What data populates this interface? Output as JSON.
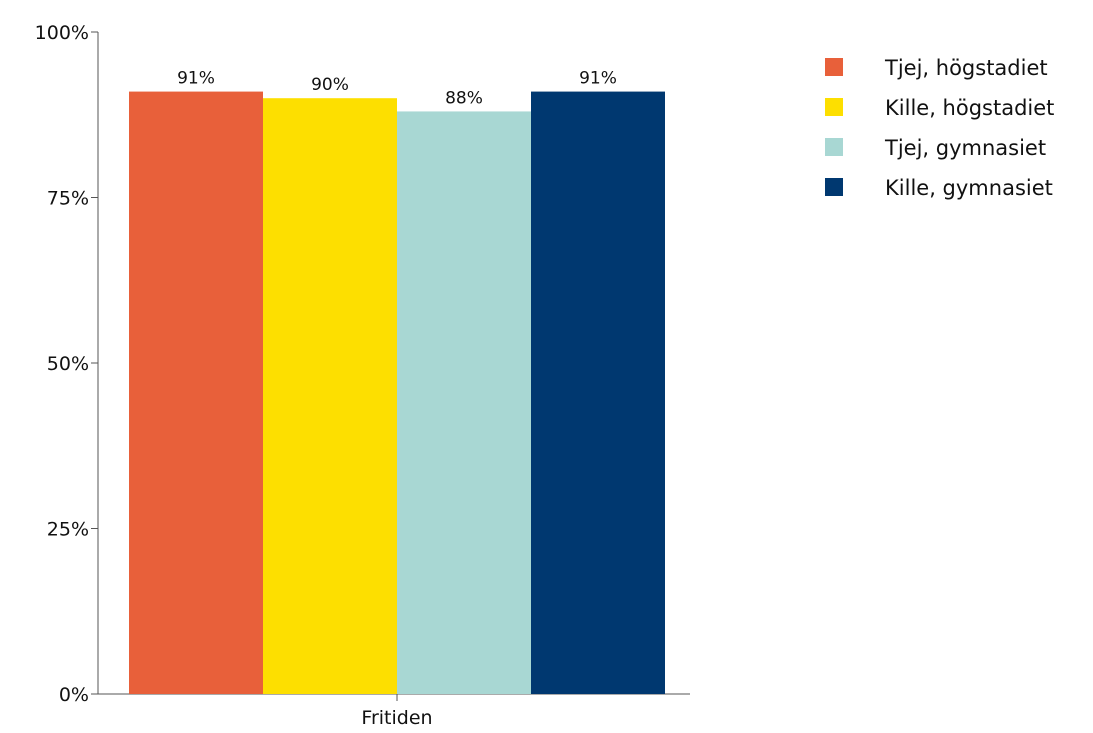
{
  "chart_data": {
    "type": "bar",
    "categories": [
      "Fritiden"
    ],
    "series": [
      {
        "name": "Tjej, högstadiet",
        "values": [
          91
        ],
        "label": "91%",
        "color": "#E8603A"
      },
      {
        "name": "Kille, högstadiet",
        "values": [
          90
        ],
        "label": "90%",
        "color": "#FDDF00"
      },
      {
        "name": "Tjej, gymnasiet",
        "values": [
          88
        ],
        "label": "88%",
        "color": "#A8D7D3"
      },
      {
        "name": "Kille, gymnasiet",
        "values": [
          91
        ],
        "label": "91%",
        "color": "#003870"
      }
    ],
    "y_ticks": [
      {
        "value": 0,
        "label": "0%"
      },
      {
        "value": 25,
        "label": "25%"
      },
      {
        "value": 50,
        "label": "50%"
      },
      {
        "value": 75,
        "label": "75%"
      },
      {
        "value": 100,
        "label": "100%"
      }
    ],
    "ylim": [
      0,
      100
    ],
    "xlabel": "",
    "ylabel": "",
    "grid": false,
    "legend_position": "top-right"
  }
}
